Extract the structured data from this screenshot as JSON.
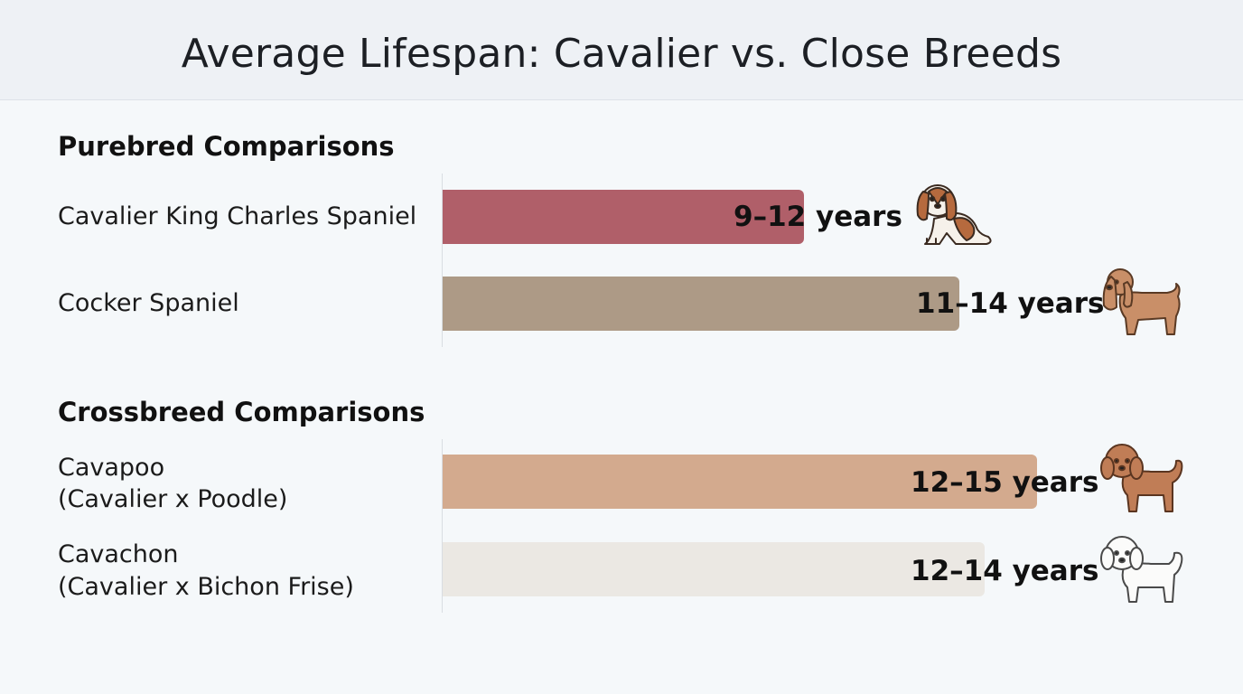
{
  "title": "Average Lifespan: Cavalier vs. Close Breeds",
  "chart_data": {
    "type": "bar",
    "orientation": "horizontal",
    "title": "Average Lifespan: Cavalier vs. Close Breeds",
    "unit": "years",
    "groups": [
      {
        "name": "Purebred Comparisons",
        "items": [
          {
            "label_lines": [
              "Cavalier King Charles Spaniel"
            ],
            "range": [
              9,
              12
            ],
            "value_label": "9–12 years",
            "color": "#b05f69",
            "icon": "cavalier-dog-icon"
          },
          {
            "label_lines": [
              "Cocker Spaniel"
            ],
            "range": [
              11,
              14
            ],
            "value_label": "11–14 years",
            "color": "#ad9a86",
            "icon": "cocker-spaniel-dog-icon"
          }
        ]
      },
      {
        "name": "Crossbreed Comparisons",
        "items": [
          {
            "label_lines": [
              "Cavapoo",
              "(Cavalier x Poodle)"
            ],
            "range": [
              12,
              15
            ],
            "value_label": "12–15 years",
            "color": "#d3aa8e",
            "icon": "cavapoo-dog-icon"
          },
          {
            "label_lines": [
              "Cavachon",
              "(Cavalier x Bichon Frise)"
            ],
            "range": [
              12,
              14
            ],
            "value_label": "12–14 years",
            "color": "#ebe8e3",
            "icon": "cavachon-dog-icon"
          }
        ]
      }
    ]
  }
}
